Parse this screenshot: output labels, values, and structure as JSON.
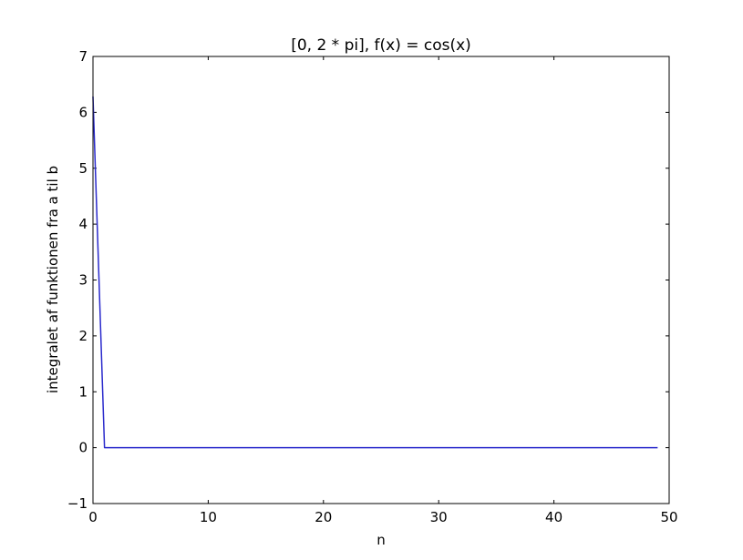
{
  "chart_data": {
    "type": "line",
    "title": "[0, 2 * pi], f(x) = cos(x)",
    "xlabel": "n",
    "ylabel": "integralet af funktionen fra a til b",
    "xlim": [
      0,
      50
    ],
    "ylim": [
      -1,
      7
    ],
    "xticks": [
      0,
      10,
      20,
      30,
      40,
      50
    ],
    "xtick_labels": [
      "0",
      "10",
      "20",
      "30",
      "40",
      "50"
    ],
    "yticks": [
      -1,
      0,
      1,
      2,
      3,
      4,
      5,
      6,
      7
    ],
    "ytick_labels": [
      "−1",
      "0",
      "1",
      "2",
      "3",
      "4",
      "5",
      "6",
      "7"
    ],
    "grid": false,
    "series": [
      {
        "color": "#2a2acc",
        "x": [
          0,
          1,
          2,
          3,
          4,
          5,
          6,
          7,
          8,
          9,
          10,
          11,
          12,
          13,
          14,
          15,
          16,
          17,
          18,
          19,
          20,
          21,
          22,
          23,
          24,
          25,
          26,
          27,
          28,
          29,
          30,
          31,
          32,
          33,
          34,
          35,
          36,
          37,
          38,
          39,
          40,
          41,
          42,
          43,
          44,
          45,
          46,
          47,
          48,
          49
        ],
        "y": [
          6.2832,
          0,
          0,
          0,
          0,
          0,
          0,
          0,
          0,
          0,
          0,
          0,
          0,
          0,
          0,
          0,
          0,
          0,
          0,
          0,
          0,
          0,
          0,
          0,
          0,
          0,
          0,
          0,
          0,
          0,
          0,
          0,
          0,
          0,
          0,
          0,
          0,
          0,
          0,
          0,
          0,
          0,
          0,
          0,
          0,
          0,
          0,
          0,
          0,
          0
        ]
      }
    ]
  }
}
